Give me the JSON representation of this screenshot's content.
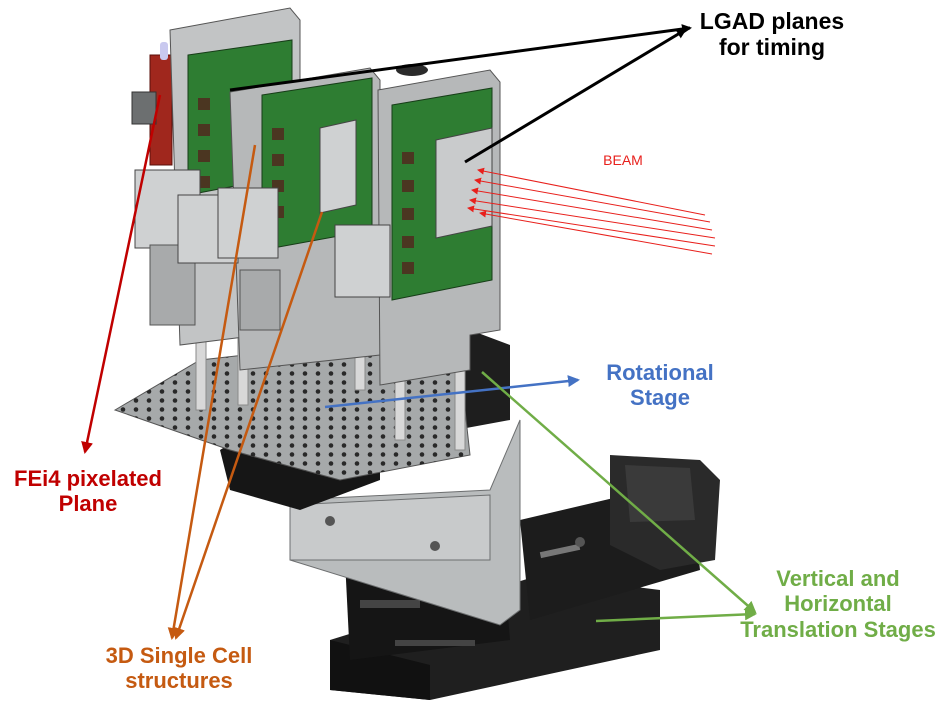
{
  "colors": {
    "lgad": "#000000",
    "beam": "#e8201c",
    "rotational": "#4472c4",
    "fei4": "#c00000",
    "single_cell": "#c55a11",
    "translation": "#70ad47",
    "board_green": "#2e7d32",
    "metal_gray": "#b9bcbd",
    "stage_black": "#1c1c1c"
  },
  "labels": {
    "lgad": [
      "LGAD planes",
      "for timing"
    ],
    "beam": "BEAM",
    "rotational": [
      "Rotational",
      "Stage"
    ],
    "fei4": [
      "FEi4 pixelated",
      "Plane"
    ],
    "single_cell": [
      "3D Single Cell",
      "structures"
    ],
    "translation": [
      "Vertical and",
      "Horizontal",
      "Translation Stages"
    ]
  }
}
